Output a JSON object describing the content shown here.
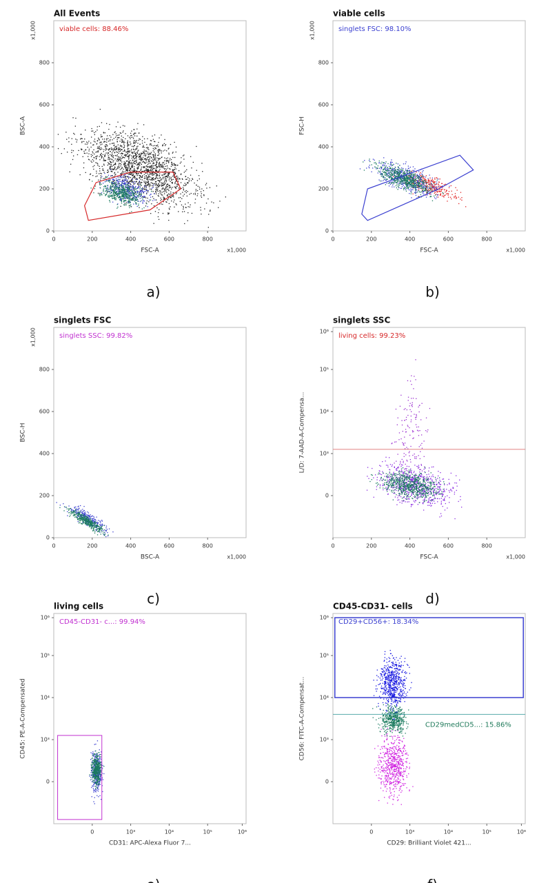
{
  "panels": [
    {
      "title": "All Events",
      "gates": [
        "viable cells: 88.46%"
      ],
      "y_label": "BSC-A",
      "x_label": "FSC-A",
      "y_ticks": [
        "0",
        "200",
        "400",
        "600",
        "800"
      ],
      "x_ticks": [
        "0",
        "200",
        "400",
        "600",
        "800"
      ],
      "y_multiplier": "x1,000",
      "x_multiplier": "x1,000",
      "caption": "a)"
    },
    {
      "title": "viable cells",
      "gates": [
        "singlets FSC: 98.10%"
      ],
      "y_label": "FSC-H",
      "x_label": "FSC-A",
      "y_ticks": [
        "0",
        "200",
        "400",
        "600",
        "800"
      ],
      "x_ticks": [
        "0",
        "200",
        "400",
        "600",
        "800"
      ],
      "y_multiplier": "x1,000",
      "x_multiplier": "x1,000",
      "caption": "b)"
    },
    {
      "title": "singlets FSC",
      "gates": [
        "singlets SSC: 99.82%"
      ],
      "y_label": "BSC-H",
      "x_label": "BSC-A",
      "y_ticks": [
        "0",
        "200",
        "400",
        "600",
        "800"
      ],
      "x_ticks": [
        "0",
        "200",
        "400",
        "600",
        "800"
      ],
      "y_multiplier": "x1,000",
      "x_multiplier": "x1,000",
      "caption": "c)"
    },
    {
      "title": "singlets SSC",
      "gates": [
        "living cells: 99.23%"
      ],
      "y_label": "L/D: 7-AAD-A-Compensa...",
      "x_label": "FSC-A",
      "y_ticks": [
        "0",
        "10³",
        "10⁴",
        "10⁵",
        "10⁶"
      ],
      "x_ticks": [
        "0",
        "200",
        "400",
        "600",
        "800"
      ],
      "x_multiplier": "x1,000",
      "caption": "d)"
    },
    {
      "title": "living cells",
      "gates": [
        "CD45-CD31- c...: 99.94%"
      ],
      "y_label": "CD45: PE-A-Compensated",
      "x_label": "CD31: APC-Alexa Fluor 7...",
      "y_ticks": [
        "0",
        "10³",
        "10⁴",
        "10⁵",
        "10⁶"
      ],
      "x_ticks": [
        "0",
        "10³",
        "10⁴",
        "10⁵",
        "10⁶"
      ],
      "caption": "e)"
    },
    {
      "title": "CD45-CD31- cells",
      "gates": [
        "CD29+CD56+: 18.34%",
        "CD29medCD5...: 15.86%"
      ],
      "y_label": "CD56: FITC-A-Compensat...",
      "x_label": "CD29: Brilliant Violet 421...",
      "y_ticks": [
        "0",
        "10³",
        "10⁴",
        "10⁵",
        "10⁶"
      ],
      "x_ticks": [
        "0",
        "10³",
        "10⁴",
        "10⁵",
        "10⁶"
      ],
      "caption": "f)"
    }
  ]
}
